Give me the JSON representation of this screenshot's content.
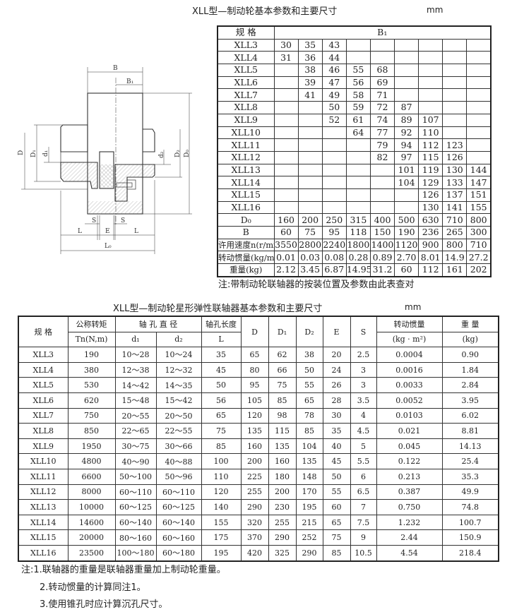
{
  "table1": {
    "title": "XLL型—制动轮基本参数和主要尺寸",
    "unit": "mm",
    "header": [
      "规 格",
      "B₁"
    ],
    "spec_rows": [
      {
        "label": "XLL3",
        "values": [
          "30",
          "35",
          "43",
          "",
          "",
          "",
          "",
          "",
          ""
        ]
      },
      {
        "label": "XLL4",
        "values": [
          "31",
          "36",
          "44",
          "",
          "",
          "",
          "",
          "",
          ""
        ]
      },
      {
        "label": "XLL5",
        "values": [
          "",
          "38",
          "46",
          "55",
          "68",
          "",
          "",
          "",
          ""
        ]
      },
      {
        "label": "XLL6",
        "values": [
          "",
          "39",
          "47",
          "56",
          "69",
          "",
          "",
          "",
          ""
        ]
      },
      {
        "label": "XLL7",
        "values": [
          "",
          "41",
          "49",
          "58",
          "71",
          "",
          "",
          "",
          ""
        ]
      },
      {
        "label": "XLL8",
        "values": [
          "",
          "",
          "50",
          "59",
          "72",
          "87",
          "",
          "",
          ""
        ]
      },
      {
        "label": "XLL9",
        "values": [
          "",
          "",
          "52",
          "61",
          "74",
          "89",
          "107",
          "",
          ""
        ]
      },
      {
        "label": "XLL10",
        "values": [
          "",
          "",
          "",
          "64",
          "77",
          "92",
          "110",
          "",
          ""
        ]
      },
      {
        "label": "XLL11",
        "values": [
          "",
          "",
          "",
          "",
          "79",
          "94",
          "112",
          "123",
          ""
        ]
      },
      {
        "label": "XLL12",
        "values": [
          "",
          "",
          "",
          "",
          "82",
          "97",
          "115",
          "126",
          ""
        ]
      },
      {
        "label": "XLL13",
        "values": [
          "",
          "",
          "",
          "",
          "",
          "101",
          "119",
          "130",
          "144"
        ]
      },
      {
        "label": "XLL14",
        "values": [
          "",
          "",
          "",
          "",
          "",
          "104",
          "129",
          "133",
          "147"
        ]
      },
      {
        "label": "XLL15",
        "values": [
          "",
          "",
          "",
          "",
          "",
          "",
          "126",
          "137",
          "151"
        ]
      },
      {
        "label": "XLL16",
        "values": [
          "",
          "",
          "",
          "",
          "",
          "",
          "130",
          "141",
          "155"
        ]
      }
    ],
    "param_rows": [
      {
        "label": "D₀",
        "values": [
          "160",
          "200",
          "250",
          "315",
          "400",
          "500",
          "630",
          "710",
          "800"
        ]
      },
      {
        "label": "B",
        "values": [
          "60",
          "75",
          "95",
          "118",
          "150",
          "190",
          "236",
          "265",
          "300"
        ]
      },
      {
        "label": "许用速度n(r/min)",
        "values": [
          "3550",
          "2800",
          "2240",
          "1800",
          "1400",
          "1120",
          "900",
          "800",
          "710"
        ]
      },
      {
        "label": "转动惯量(kg/m²)",
        "values": [
          "0.01",
          "0.03",
          "0.08",
          "0.28",
          "0.89",
          "2.70",
          "8.01",
          "14.9",
          "27.2"
        ]
      },
      {
        "label": "重量(kg)",
        "values": [
          "2.12",
          "3.45",
          "6.87",
          "14.95",
          "31.2",
          "60",
          "112",
          "161",
          "202"
        ]
      }
    ],
    "note": "注:带制动轮联轴器的按装位置及参数由此表查对"
  },
  "diagram": {
    "labels": {
      "B": "B",
      "B1": "B₁",
      "D": "D",
      "D1": "D₁",
      "d1": "d₁",
      "d2": "d₂",
      "D2": "D₂",
      "D0": "D₀",
      "S_left": "S",
      "S_right": "S",
      "L_left": "L",
      "E": "E",
      "L_right": "L",
      "L0": "L₀"
    }
  },
  "table2": {
    "title": "XLL型—制动轮星形弹性联轴器基本参数和主要尺寸",
    "unit": "mm",
    "header": {
      "spec": "规 格",
      "torque_top": "公称转矩",
      "torque_bottom": "Tn(N,m)",
      "bore": "轴 孔 直 径",
      "d1": "d₁",
      "d2": "d₂",
      "length_top": "轴孔长度",
      "length_bottom": "L",
      "D": "D",
      "D1": "D₁",
      "D2": "D₂",
      "E": "E",
      "S": "S",
      "inertia_top": "转动惯量",
      "inertia_bottom": "(kg · m²)",
      "weight_top": "重 量",
      "weight_bottom": "(kg)"
    },
    "rows": [
      [
        "XLL3",
        "190",
        "10～28",
        "10～24",
        "35",
        "65",
        "62",
        "38",
        "20",
        "2.5",
        "0.0004",
        "0.90"
      ],
      [
        "XLL4",
        "380",
        "12～38",
        "12～32",
        "45",
        "80",
        "66",
        "50",
        "24",
        "3",
        "0.0016",
        "1.84"
      ],
      [
        "XLL5",
        "530",
        "14～42",
        "14～35",
        "50",
        "95",
        "75",
        "55",
        "26",
        "3",
        "0.0033",
        "2.84"
      ],
      [
        "XLL6",
        "620",
        "15～48",
        "15～42",
        "56",
        "105",
        "85",
        "65",
        "28",
        "3.5",
        "0.0052",
        "3.95"
      ],
      [
        "XLL7",
        "750",
        "20～55",
        "20～50",
        "65",
        "120",
        "98",
        "78",
        "30",
        "4",
        "0.0103",
        "6.02"
      ],
      [
        "XLL8",
        "850",
        "22～65",
        "22～55",
        "75",
        "135",
        "115",
        "85",
        "35",
        "4.5",
        "0.021",
        "8.81"
      ],
      [
        "XLL9",
        "1950",
        "30～75",
        "30～66",
        "85",
        "160",
        "135",
        "104",
        "40",
        "5",
        "0.045",
        "14.13"
      ],
      [
        "XLL10",
        "4800",
        "40～90",
        "40～88",
        "100",
        "200",
        "160",
        "135",
        "45",
        "5.5",
        "0.122",
        "25.4"
      ],
      [
        "XLL11",
        "6600",
        "50～100",
        "50～96",
        "110",
        "225",
        "180",
        "148",
        "50",
        "6",
        "0.213",
        "35.3"
      ],
      [
        "XLL12",
        "8000",
        "60～110",
        "60～110",
        "120",
        "255",
        "200",
        "170",
        "55",
        "6.5",
        "0.387",
        "49.9"
      ],
      [
        "XLL13",
        "10000",
        "60～125",
        "60～125",
        "140",
        "290",
        "230",
        "195",
        "60",
        "7",
        "0.750",
        "74.8"
      ],
      [
        "XLL14",
        "14600",
        "60～140",
        "60～140",
        "155",
        "320",
        "255",
        "215",
        "65",
        "7.5",
        "1.232",
        "100.7"
      ],
      [
        "XLL15",
        "20000",
        "80～160",
        "60～160",
        "175",
        "370",
        "290",
        "252",
        "75",
        "9",
        "2.44",
        "150.9"
      ],
      [
        "XLL16",
        "23500",
        "100～180",
        "60～180",
        "195",
        "420",
        "325",
        "290",
        "85",
        "10.5",
        "4.54",
        "218.4"
      ]
    ],
    "notes": [
      "注:1.联轴器的重量是联轴器重量加上制动轮重量。",
      "2.转动惯量的计算同注1。",
      "3.使用锥孔时应计算沉孔尺寸。"
    ]
  }
}
